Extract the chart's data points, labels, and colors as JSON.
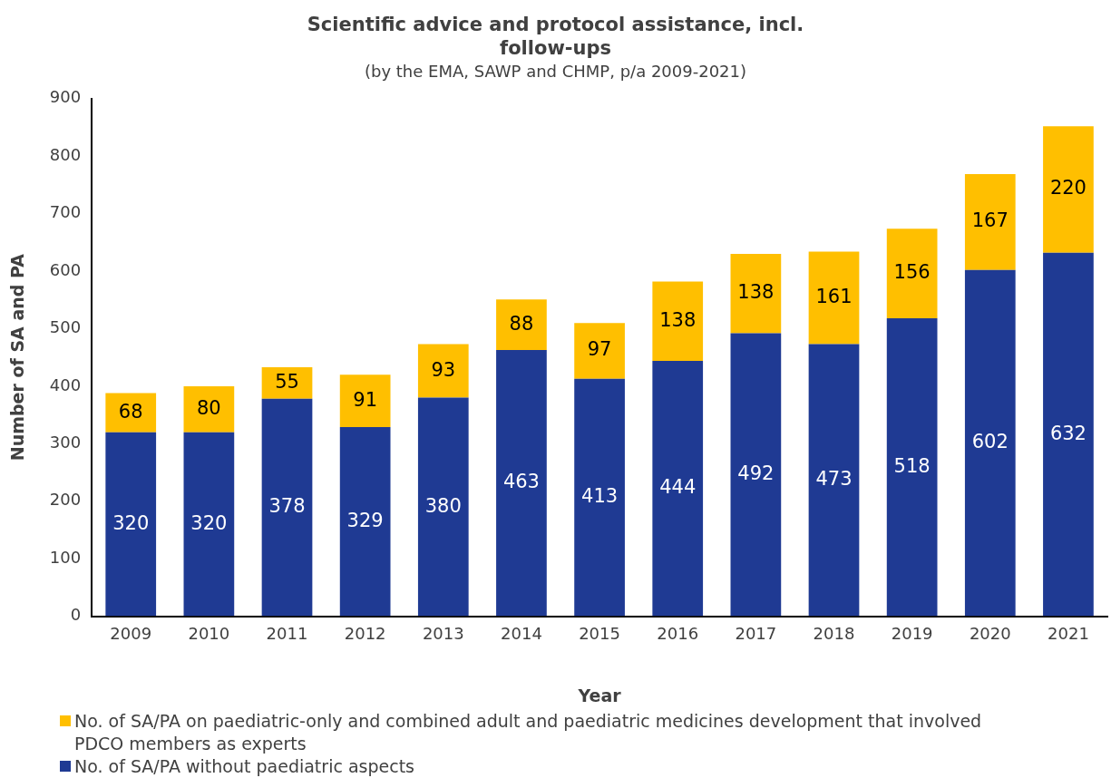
{
  "chart_data": {
    "type": "bar",
    "title": "Scientific advice and protocol assistance, incl. follow-ups",
    "subtitle": "(by the EMA, SAWP and CHMP, p/a 2009-2021)",
    "xlabel": "Year",
    "ylabel": "Number of SA and PA",
    "categories": [
      "2009",
      "2010",
      "2011",
      "2012",
      "2013",
      "2014",
      "2015",
      "2016",
      "2017",
      "2018",
      "2019",
      "2020",
      "2021"
    ],
    "series": [
      {
        "name": "No. of SA/PA without paediatric aspects",
        "color": "#1f3a93",
        "values": [
          320,
          320,
          378,
          329,
          380,
          463,
          413,
          444,
          492,
          473,
          518,
          602,
          632
        ]
      },
      {
        "name": "No. of SA/PA on paediatric-only and combined adult and paediatric medicines development that involved PDCO members as experts",
        "color": "#ffbf00",
        "values": [
          68,
          80,
          55,
          91,
          93,
          88,
          97,
          138,
          138,
          161,
          156,
          167,
          220
        ]
      }
    ],
    "stacked": true,
    "ylim": [
      0,
      900
    ],
    "yticks": [
      0,
      100,
      200,
      300,
      400,
      500,
      600,
      700,
      800,
      900
    ],
    "grid": false,
    "legend": "bottom",
    "data_labels": true
  }
}
